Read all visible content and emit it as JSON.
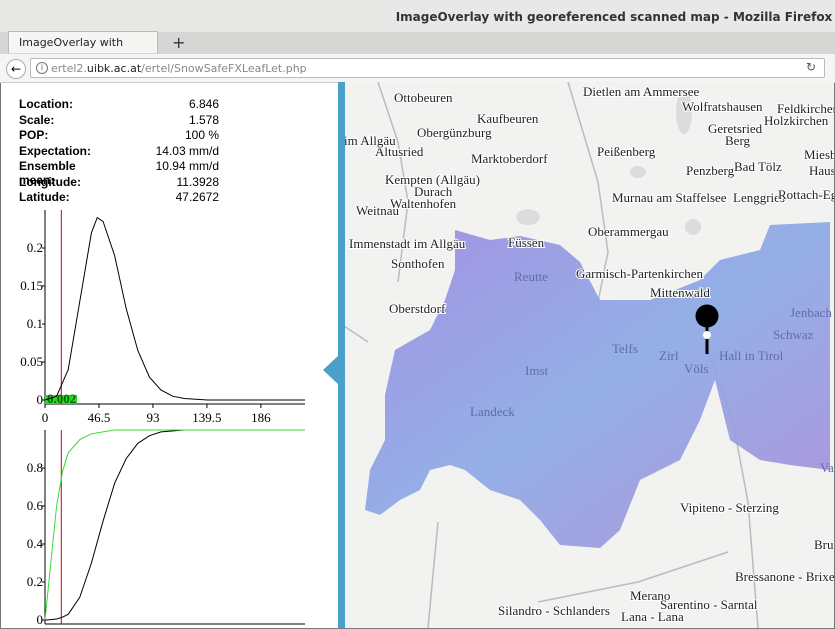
{
  "window": {
    "title": "ImageOverlay with georeferenced scanned map - Mozilla Firefox"
  },
  "tab": {
    "title": "ImageOverlay with geore..."
  },
  "address": {
    "prefix": "ertel2.",
    "domain": "uibk.ac.at",
    "path": "/ertel/SnowSafeFXLeafLet.php"
  },
  "info": {
    "rows": [
      [
        "Location:",
        "6.846"
      ],
      [
        "Scale:",
        "1.578"
      ],
      [
        "POP:",
        "100 %"
      ],
      [
        "Expectation:",
        "14.03 mm/d"
      ],
      [
        "Ensemble mean:",
        "10.94 mm/d"
      ],
      [
        "Longitude:",
        "11.3928"
      ],
      [
        "Latitude:",
        "47.2672"
      ]
    ]
  },
  "chart_data": [
    {
      "type": "line",
      "annotation": "0.002",
      "marker_x": 14.03,
      "x": [
        0,
        10,
        20,
        30,
        40,
        45,
        50,
        60,
        70,
        80,
        90,
        100,
        110,
        120,
        140,
        224
      ],
      "series": [
        {
          "color": "#000000",
          "values": [
            0,
            0.005,
            0.04,
            0.13,
            0.22,
            0.24,
            0.235,
            0.19,
            0.12,
            0.065,
            0.03,
            0.013,
            0.005,
            0.002,
            0,
            0
          ]
        }
      ],
      "xlim": [
        0,
        224
      ],
      "ylim": [
        0,
        0.25
      ],
      "xticks": [
        0,
        46.5,
        93,
        139.5,
        186
      ],
      "yticks": [
        0,
        0.05,
        0.1,
        0.15,
        0.2
      ]
    },
    {
      "type": "line",
      "marker_x": 14.03,
      "x": [
        0,
        5,
        10,
        15,
        20,
        30,
        40,
        50,
        60,
        70,
        80,
        90,
        100,
        120,
        224
      ],
      "series": [
        {
          "color": "#000000",
          "values": [
            0,
            0.002,
            0.005,
            0.015,
            0.03,
            0.12,
            0.3,
            0.52,
            0.72,
            0.85,
            0.93,
            0.97,
            0.99,
            1,
            1
          ]
        },
        {
          "color": "#33dd33",
          "values": [
            0,
            0.3,
            0.6,
            0.78,
            0.88,
            0.95,
            0.98,
            0.99,
            1,
            1,
            1,
            1,
            1,
            1,
            1
          ]
        }
      ],
      "xlim": [
        0,
        224
      ],
      "ylim": [
        0,
        1
      ],
      "yticks": [
        0,
        0.2,
        0.4,
        0.6,
        0.8
      ]
    }
  ],
  "map": {
    "labels": [
      "Ottobeuren",
      "Dietlen am Ammersee",
      "Kaufbeuren",
      "Wolfratshausen",
      "Feldkirchen-West",
      "Geretsried",
      "Holzkirchen",
      "Obergünzburg",
      "Berg",
      "Miesba",
      "Altusried",
      "Marktoberdorf",
      "Peißenberg",
      "im Allgäu",
      "Penzberg",
      "Bad Tölz",
      "Haus",
      "Kempten (Allgäu)",
      "Durach",
      "Murnau am Staffelsee",
      "Lenggries",
      "Rottach-Eger",
      "Weitnau",
      "Waltenhofen",
      "Oberammergau",
      "Immenstadt im Allgäu",
      "Füssen",
      "Sonthofen",
      "Garmisch-Partenkirchen",
      "Mittenwald",
      "Oberstdorf",
      "Vipiteno - Sterzing",
      "Bru",
      "Bressanone - Brixen",
      "Merano",
      "Sarentino - Sarntal",
      "Silandro - Schlanders",
      "Lana - Lana"
    ],
    "overlay_labels": [
      "Reutte",
      "Jenbach",
      "Schwaz",
      "Telfs",
      "Zirl",
      "Hall in Tirol",
      "Imst",
      "Völs",
      "Landeck",
      "Va"
    ]
  }
}
